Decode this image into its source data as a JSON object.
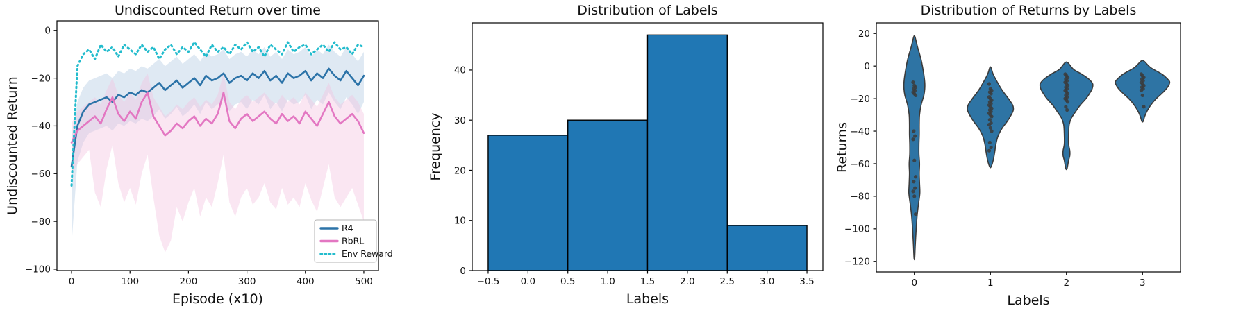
{
  "figure": {
    "background": "#ffffff",
    "axis_color": "#000000",
    "tick_label_color": "#111111"
  },
  "chart_data": [
    {
      "type": "line",
      "title": "Undiscounted Return over time",
      "xlabel": "Episode (x10)",
      "ylabel": "Undiscounted Return",
      "xlim": [
        -25,
        525
      ],
      "ylim": [
        -100.6,
        4
      ],
      "grid": false,
      "legend_position": "lower right",
      "xticks": {
        "values": [
          0,
          100,
          200,
          300,
          400,
          500
        ],
        "labels": [
          "0",
          "100",
          "200",
          "300",
          "400",
          "500"
        ]
      },
      "yticks": {
        "values": [
          0,
          -20,
          -40,
          -60,
          -80,
          -100
        ],
        "labels": [
          "0",
          "−20",
          "−40",
          "−60",
          "−80",
          "−100"
        ]
      },
      "x": [
        0,
        10,
        20,
        30,
        40,
        50,
        60,
        70,
        80,
        90,
        100,
        110,
        120,
        130,
        140,
        150,
        160,
        170,
        180,
        190,
        200,
        210,
        220,
        230,
        240,
        250,
        260,
        270,
        280,
        290,
        300,
        310,
        320,
        330,
        340,
        350,
        360,
        370,
        380,
        390,
        400,
        410,
        420,
        430,
        440,
        450,
        460,
        470,
        480,
        490,
        500
      ],
      "series": [
        {
          "name": "R4",
          "color": "#2c73a8",
          "style": "solid",
          "band_color": "#9dbcd9",
          "band_opacity": 0.32,
          "y": [
            -57,
            -40,
            -34,
            -31,
            -30,
            -29,
            -28,
            -30,
            -27,
            -28,
            -26,
            -27,
            -25,
            -26,
            -24,
            -22,
            -25,
            -23,
            -21,
            -24,
            -22,
            -20,
            -23,
            -19,
            -21,
            -20,
            -18,
            -22,
            -20,
            -19,
            -21,
            -18,
            -20,
            -17,
            -21,
            -19,
            -22,
            -18,
            -20,
            -19,
            -17,
            -21,
            -18,
            -20,
            -16,
            -19,
            -21,
            -17,
            -20,
            -23,
            -19
          ],
          "band_high": [
            -46,
            -30,
            -24,
            -21,
            -20,
            -19,
            -18,
            -20,
            -17,
            -18,
            -16,
            -17,
            -15,
            -16,
            -14,
            -12,
            -15,
            -13,
            -11,
            -14,
            -12,
            -10,
            -13,
            -9,
            -11,
            -10,
            -8,
            -12,
            -10,
            -9,
            -11,
            -8,
            -10,
            -7,
            -11,
            -9,
            -12,
            -8,
            -10,
            -9,
            -7,
            -11,
            -8,
            -10,
            -6,
            -9,
            -11,
            -7,
            -10,
            -13,
            -9
          ],
          "band_low": [
            -90,
            -55,
            -47,
            -43,
            -42,
            -41,
            -40,
            -42,
            -39,
            -40,
            -38,
            -39,
            -37,
            -38,
            -36,
            -33,
            -37,
            -35,
            -32,
            -36,
            -34,
            -31,
            -35,
            -30,
            -33,
            -31,
            -29,
            -34,
            -31,
            -30,
            -33,
            -29,
            -31,
            -27,
            -33,
            -30,
            -34,
            -29,
            -31,
            -30,
            -27,
            -33,
            -29,
            -31,
            -26,
            -30,
            -33,
            -28,
            -31,
            -35,
            -30
          ]
        },
        {
          "name": "RbRL",
          "color": "#e377c2",
          "style": "solid",
          "band_color": "#f2c3e1",
          "band_opacity": 0.42,
          "y": [
            -47,
            -42,
            -40,
            -38,
            -36,
            -39,
            -33,
            -28,
            -35,
            -38,
            -34,
            -37,
            -30,
            -26,
            -36,
            -40,
            -44,
            -42,
            -39,
            -41,
            -38,
            -36,
            -40,
            -37,
            -39,
            -35,
            -26,
            -38,
            -41,
            -37,
            -35,
            -38,
            -36,
            -34,
            -37,
            -39,
            -35,
            -38,
            -36,
            -39,
            -34,
            -37,
            -40,
            -35,
            -30,
            -36,
            -39,
            -37,
            -35,
            -38,
            -43
          ],
          "band_high": [
            -39,
            -34,
            -32,
            -30,
            -28,
            -31,
            -25,
            -20,
            -27,
            -30,
            -26,
            -29,
            -22,
            -18,
            -28,
            -32,
            -36,
            -34,
            -31,
            -33,
            -30,
            -28,
            -32,
            -29,
            -31,
            -27,
            -18,
            -30,
            -33,
            -29,
            -27,
            -30,
            -28,
            -26,
            -29,
            -31,
            -27,
            -30,
            -28,
            -31,
            -26,
            -29,
            -32,
            -27,
            -22,
            -28,
            -31,
            -29,
            -27,
            -30,
            -35
          ],
          "band_low": [
            -60,
            -56,
            -53,
            -50,
            -68,
            -74,
            -58,
            -48,
            -64,
            -72,
            -66,
            -73,
            -60,
            -52,
            -70,
            -86,
            -93,
            -88,
            -74,
            -80,
            -72,
            -66,
            -78,
            -70,
            -74,
            -64,
            -52,
            -72,
            -78,
            -70,
            -66,
            -73,
            -70,
            -64,
            -72,
            -75,
            -66,
            -73,
            -70,
            -74,
            -64,
            -71,
            -76,
            -66,
            -56,
            -70,
            -74,
            -70,
            -66,
            -73,
            -80
          ]
        },
        {
          "name": "Env Reward",
          "color": "#23bccd",
          "style": "dotted",
          "y": [
            -65,
            -15,
            -10,
            -8,
            -12,
            -6,
            -9,
            -7,
            -11,
            -6,
            -8,
            -10,
            -6,
            -9,
            -7,
            -12,
            -8,
            -6,
            -10,
            -7,
            -9,
            -5,
            -8,
            -11,
            -6,
            -9,
            -7,
            -10,
            -6,
            -8,
            -5,
            -9,
            -7,
            -11,
            -6,
            -8,
            -10,
            -5,
            -9,
            -7,
            -6,
            -10,
            -8,
            -6,
            -9,
            -5,
            -8,
            -7,
            -10,
            -6,
            -7
          ]
        }
      ]
    },
    {
      "type": "bar",
      "title": "Distribution of Labels",
      "xlabel": "Labels",
      "ylabel": "Frequency",
      "xlim": [
        -0.7,
        3.7
      ],
      "ylim": [
        0,
        49.4
      ],
      "grid": false,
      "bar_color": "#2077b4",
      "bar_edge_color": "#000000",
      "bin_edges": [
        -0.5,
        0.5,
        1.5,
        2.5,
        3.5
      ],
      "values": [
        27,
        30,
        47,
        9
      ],
      "xticks": {
        "values": [
          -0.5,
          0.0,
          0.5,
          1.0,
          1.5,
          2.0,
          2.5,
          3.0,
          3.5
        ],
        "labels": [
          "−0.5",
          "0.0",
          "0.5",
          "1.0",
          "1.5",
          "2.0",
          "2.5",
          "3.0",
          "3.5"
        ]
      },
      "yticks": {
        "values": [
          0,
          10,
          20,
          30,
          40
        ],
        "labels": [
          "0",
          "10",
          "20",
          "30",
          "40"
        ]
      }
    },
    {
      "type": "violin",
      "title": "Distribution of Returns by Labels",
      "xlabel": "Labels",
      "ylabel": "Returns",
      "xlim": [
        -0.5,
        3.5
      ],
      "ylim": [
        -126.5,
        26.5
      ],
      "grid": false,
      "fill_color": "#2e74a4",
      "edge_color": "#3b3b3b",
      "point_color": "#3b3b3b",
      "xticks": {
        "values": [
          0,
          1,
          2,
          3
        ],
        "labels": [
          "0",
          "1",
          "2",
          "3"
        ]
      },
      "yticks": {
        "values": [
          20,
          0,
          -20,
          -40,
          -60,
          -80,
          -100,
          -120
        ],
        "labels": [
          "20",
          "0",
          "−20",
          "−40",
          "−60",
          "−80",
          "−100",
          "−120"
        ]
      },
      "violins": [
        {
          "label": "0",
          "profile": [
            [
              18,
              0.02
            ],
            [
              12,
              0.1
            ],
            [
              4,
              0.22
            ],
            [
              -4,
              0.3
            ],
            [
              -10,
              0.34
            ],
            [
              -14,
              0.34
            ],
            [
              -18,
              0.31
            ],
            [
              -24,
              0.22
            ],
            [
              -30,
              0.17
            ],
            [
              -36,
              0.16
            ],
            [
              -42,
              0.16
            ],
            [
              -48,
              0.15
            ],
            [
              -54,
              0.15
            ],
            [
              -60,
              0.17
            ],
            [
              -66,
              0.16
            ],
            [
              -72,
              0.17
            ],
            [
              -78,
              0.18
            ],
            [
              -84,
              0.14
            ],
            [
              -92,
              0.09
            ],
            [
              -100,
              0.06
            ],
            [
              -110,
              0.03
            ],
            [
              -118,
              0.01
            ]
          ],
          "points": [
            -10,
            -12,
            -13,
            -14,
            -15,
            -16,
            -17,
            -18,
            -40,
            -43,
            -45,
            -58,
            -68,
            -71,
            -75,
            -77,
            -80,
            -91
          ]
        },
        {
          "label": "1",
          "profile": [
            [
              -1,
              0.02
            ],
            [
              -5,
              0.09
            ],
            [
              -10,
              0.23
            ],
            [
              -15,
              0.39
            ],
            [
              -20,
              0.59
            ],
            [
              -24,
              0.73
            ],
            [
              -27,
              0.75
            ],
            [
              -30,
              0.68
            ],
            [
              -34,
              0.55
            ],
            [
              -38,
              0.39
            ],
            [
              -43,
              0.25
            ],
            [
              -48,
              0.18
            ],
            [
              -53,
              0.14
            ],
            [
              -58,
              0.09
            ],
            [
              -62,
              0.02
            ]
          ],
          "points": [
            -11,
            -14,
            -15,
            -16,
            -17,
            -19,
            -20,
            -21,
            -22,
            -23,
            -24,
            -25,
            -26,
            -27,
            -28,
            -29,
            -30,
            -31,
            -33,
            -35,
            -36,
            -38,
            -40,
            -47,
            -50,
            -52
          ]
        },
        {
          "label": "2",
          "profile": [
            [
              2,
              0.05
            ],
            [
              -2,
              0.23
            ],
            [
              -5,
              0.5
            ],
            [
              -8,
              0.73
            ],
            [
              -11,
              0.86
            ],
            [
              -14,
              0.84
            ],
            [
              -17,
              0.75
            ],
            [
              -20,
              0.64
            ],
            [
              -24,
              0.45
            ],
            [
              -28,
              0.3
            ],
            [
              -32,
              0.16
            ],
            [
              -36,
              0.09
            ],
            [
              -42,
              0.07
            ],
            [
              -48,
              0.07
            ],
            [
              -52,
              0.11
            ],
            [
              -55,
              0.11
            ],
            [
              -58,
              0.07
            ],
            [
              -63,
              0.02
            ]
          ],
          "points": [
            -5,
            -6,
            -7,
            -8,
            -9,
            -10,
            -11,
            -12,
            -13,
            -14,
            -15,
            -16,
            -17,
            -18,
            -19,
            -20,
            -21,
            -22,
            -25,
            -27
          ]
        },
        {
          "label": "3",
          "profile": [
            [
              3,
              0.05
            ],
            [
              -1,
              0.27
            ],
            [
              -5,
              0.64
            ],
            [
              -8,
              0.82
            ],
            [
              -10,
              0.89
            ],
            [
              -13,
              0.82
            ],
            [
              -16,
              0.68
            ],
            [
              -20,
              0.45
            ],
            [
              -24,
              0.27
            ],
            [
              -28,
              0.14
            ],
            [
              -31,
              0.07
            ],
            [
              -34,
              0.02
            ]
          ],
          "points": [
            -5,
            -6,
            -7,
            -8,
            -9,
            -10,
            -11,
            -12,
            -13,
            -14,
            -15,
            -18,
            -25
          ]
        }
      ]
    }
  ]
}
